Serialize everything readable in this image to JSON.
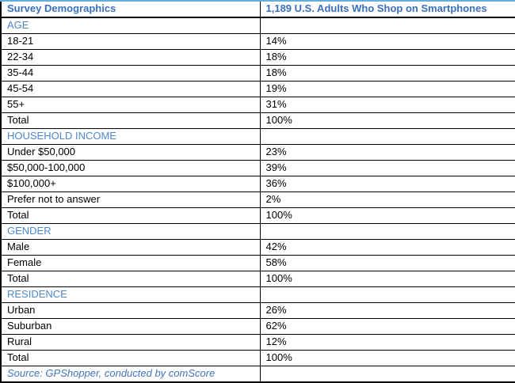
{
  "colors": {
    "header_text_blue": "#3a6fbf",
    "section_text_blue": "#4e86c8",
    "source_text_blue": "#4273be",
    "grid_border_black": "#000000",
    "top_border_light_blue": "#63aedc",
    "background": "#ffffff"
  },
  "chart_data": {
    "type": "table",
    "title": "Survey Demographics",
    "population": "1,189 U.S. Adults Who Shop on Smartphones",
    "layout": {
      "columns": 2,
      "grid": "on",
      "section_header_rows": true
    },
    "sections": [
      {
        "category": "AGE",
        "rows": [
          {
            "label": "18-21",
            "value": "14%"
          },
          {
            "label": "22-34",
            "value": "18%"
          },
          {
            "label": "35-44",
            "value": "18%"
          },
          {
            "label": "45-54",
            "value": "19%"
          },
          {
            "label": "55+",
            "value": "31%"
          },
          {
            "label": "Total",
            "value": "100%"
          }
        ]
      },
      {
        "category": "HOUSEHOLD INCOME",
        "rows": [
          {
            "label": "Under $50,000",
            "value": "23%"
          },
          {
            "label": "$50,000-100,000",
            "value": "39%"
          },
          {
            "label": "$100,000+",
            "value": "36%"
          },
          {
            "label": "Prefer not to answer",
            "value": "2%"
          },
          {
            "label": "Total",
            "value": "100%"
          }
        ]
      },
      {
        "category": "GENDER",
        "rows": [
          {
            "label": "Male",
            "value": "42%"
          },
          {
            "label": "Female",
            "value": "58%"
          },
          {
            "label": "Total",
            "value": "100%"
          }
        ]
      },
      {
        "category": "RESIDENCE",
        "rows": [
          {
            "label": "Urban",
            "value": "26%"
          },
          {
            "label": "Suburban",
            "value": "62%"
          },
          {
            "label": "Rural",
            "value": "12%"
          },
          {
            "label": "Total",
            "value": "100%"
          }
        ]
      }
    ],
    "source": "Source: GPShopper, conducted by comScore"
  }
}
